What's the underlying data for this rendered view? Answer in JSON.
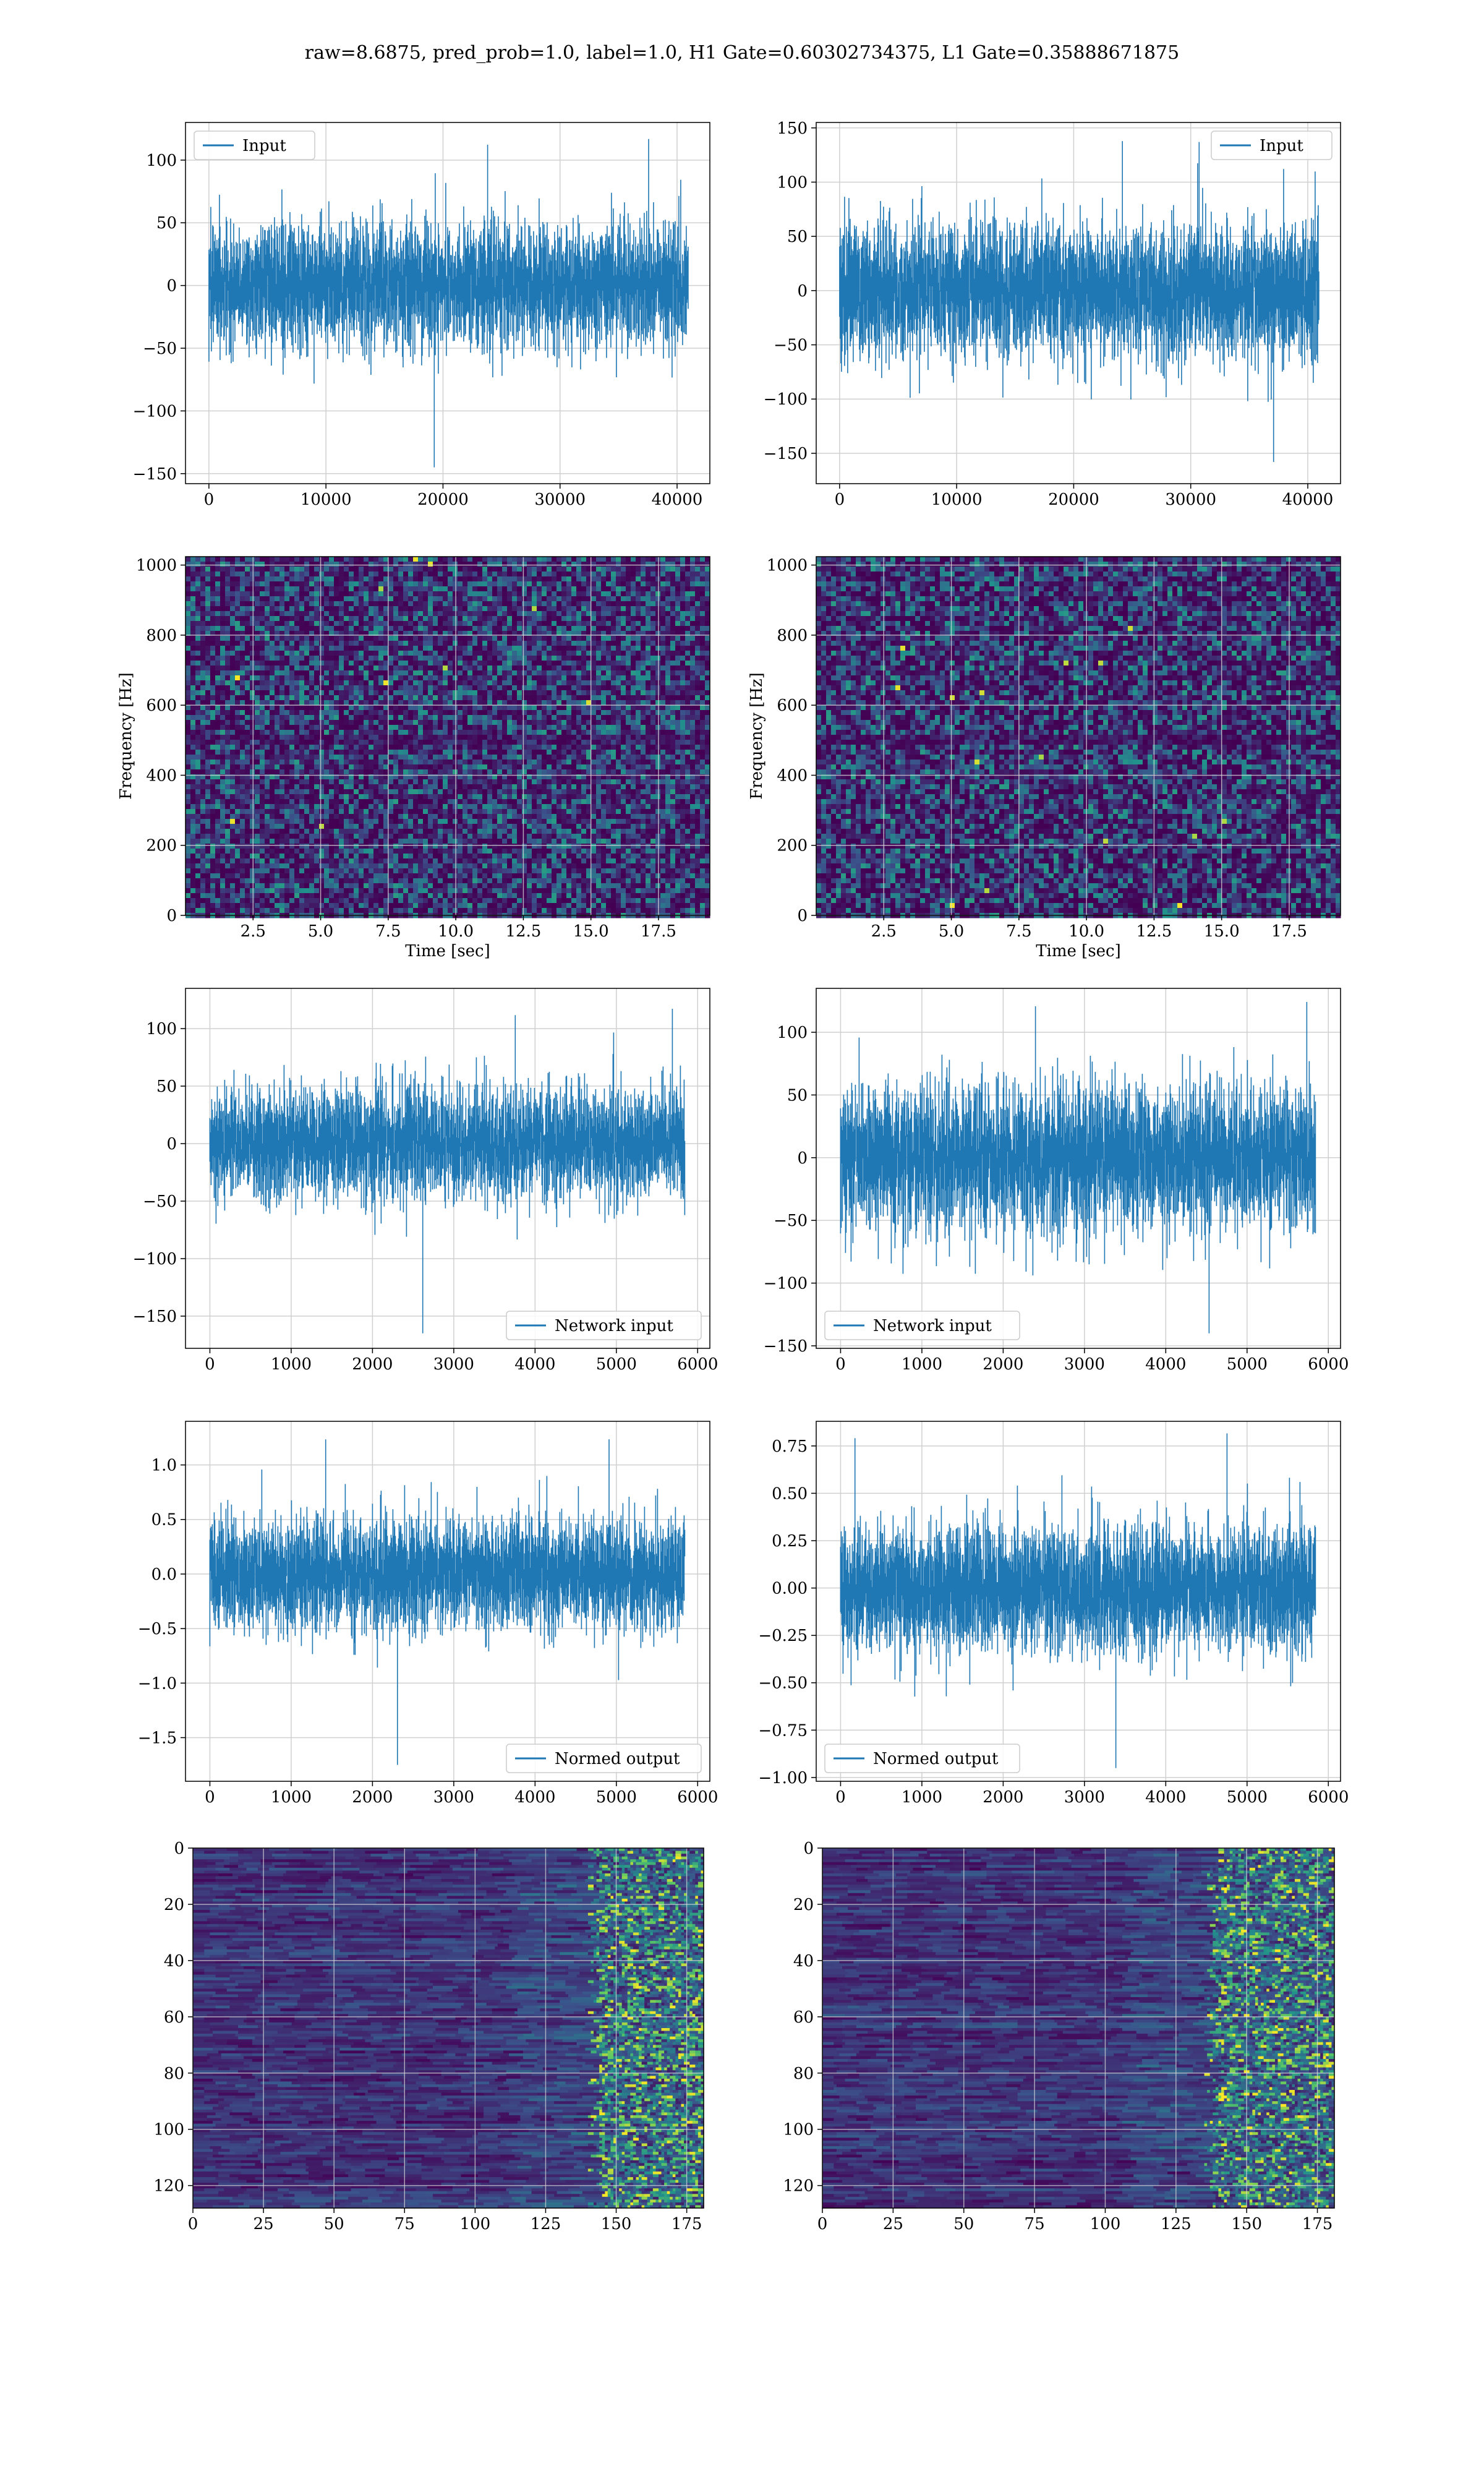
{
  "title": "raw=8.6875, pred_prob=1.0, label=1.0, H1 Gate=0.60302734375, L1 Gate=0.35888671875",
  "colors": {
    "series": "#1f77b4",
    "grid": "#d0d0d0",
    "heatmap_low": "#440154",
    "heatmap_mid": "#31688e",
    "heatmap_mid2": "#35b779",
    "heatmap_high": "#fde725"
  },
  "chart_data": [
    {
      "id": "row1-left",
      "type": "line",
      "legend": "Input",
      "legend_loc": "upper left",
      "xlim": [
        -2000,
        42800
      ],
      "ylim": [
        -158,
        130
      ],
      "xticks": [
        0,
        10000,
        20000,
        30000,
        40000
      ],
      "yticks": [
        -150,
        -100,
        -50,
        0,
        50,
        100
      ],
      "x_range": [
        0,
        40959
      ],
      "noise_sigma": 24,
      "envelope_max": 118,
      "envelope_min": -145,
      "xlabel": "",
      "ylabel": "",
      "grid": true
    },
    {
      "id": "row1-right",
      "type": "line",
      "legend": "Input",
      "legend_loc": "upper right",
      "xlim": [
        -2000,
        42800
      ],
      "ylim": [
        -178,
        155
      ],
      "xticks": [
        0,
        10000,
        20000,
        30000,
        40000
      ],
      "yticks": [
        -150,
        -100,
        -50,
        0,
        50,
        100,
        150
      ],
      "x_range": [
        0,
        40959
      ],
      "noise_sigma": 30,
      "envelope_max": 143,
      "envelope_min": -158,
      "xlabel": "",
      "ylabel": "",
      "grid": true
    },
    {
      "id": "row2-left",
      "type": "heatmap",
      "kind": "spectrogram",
      "colormap": "viridis",
      "xlim": [
        0,
        19.4
      ],
      "ylim": [
        0,
        1024
      ],
      "xticks": [
        2.5,
        5.0,
        7.5,
        10.0,
        12.5,
        15.0,
        17.5
      ],
      "yticks": [
        0,
        200,
        400,
        600,
        800,
        1000
      ],
      "xlabel": "Time [sec]",
      "ylabel": "Frequency [Hz]",
      "grid": true,
      "dark_band_hz": 500
    },
    {
      "id": "row2-right",
      "type": "heatmap",
      "kind": "spectrogram",
      "colormap": "viridis",
      "xlim": [
        0,
        19.4
      ],
      "ylim": [
        0,
        1024
      ],
      "xticks": [
        2.5,
        5.0,
        7.5,
        10.0,
        12.5,
        15.0,
        17.5
      ],
      "yticks": [
        0,
        200,
        400,
        600,
        800,
        1000
      ],
      "xlabel": "Time [sec]",
      "ylabel": "Frequency [Hz]",
      "grid": true,
      "dark_band_hz": 500
    },
    {
      "id": "row3-left",
      "type": "line",
      "legend": "Network input",
      "legend_loc": "lower right",
      "xlim": [
        -300,
        6150
      ],
      "ylim": [
        -178,
        135
      ],
      "xticks": [
        0,
        1000,
        2000,
        3000,
        4000,
        5000,
        6000
      ],
      "yticks": [
        -150,
        -100,
        -50,
        0,
        50,
        100
      ],
      "x_range": [
        0,
        5840
      ],
      "noise_sigma": 24,
      "envelope_max": 120,
      "envelope_min": -165,
      "xlabel": "",
      "ylabel": "",
      "grid": true
    },
    {
      "id": "row3-right",
      "type": "line",
      "legend": "Network input",
      "legend_loc": "lower left",
      "xlim": [
        -300,
        6150
      ],
      "ylim": [
        -152,
        135
      ],
      "xticks": [
        0,
        1000,
        2000,
        3000,
        4000,
        5000,
        6000
      ],
      "yticks": [
        -150,
        -100,
        -50,
        0,
        50,
        100
      ],
      "x_range": [
        0,
        5840
      ],
      "noise_sigma": 28,
      "envelope_max": 125,
      "envelope_min": -140,
      "xlabel": "",
      "ylabel": "",
      "grid": true
    },
    {
      "id": "row4-left",
      "type": "line",
      "legend": "Normed output",
      "legend_loc": "lower right",
      "xlim": [
        -300,
        6150
      ],
      "ylim": [
        -1.9,
        1.4
      ],
      "xticks": [
        0,
        1000,
        2000,
        3000,
        4000,
        5000,
        6000
      ],
      "yticks": [
        -1.5,
        -1.0,
        -0.5,
        0.0,
        0.5,
        1.0
      ],
      "x_range": [
        0,
        5840
      ],
      "noise_sigma": 0.25,
      "envelope_max": 1.25,
      "envelope_min": -1.75,
      "xlabel": "",
      "ylabel": "",
      "grid": true
    },
    {
      "id": "row4-right",
      "type": "line",
      "legend": "Normed output",
      "legend_loc": "lower left",
      "xlim": [
        -300,
        6150
      ],
      "ylim": [
        -1.02,
        0.88
      ],
      "xticks": [
        0,
        1000,
        2000,
        3000,
        4000,
        5000,
        6000
      ],
      "yticks": [
        -1.0,
        -0.75,
        -0.5,
        -0.25,
        0.0,
        0.25,
        0.5,
        0.75
      ],
      "x_range": [
        0,
        5840
      ],
      "noise_sigma": 0.16,
      "envelope_max": 0.82,
      "envelope_min": -0.95,
      "xlabel": "",
      "ylabel": "",
      "grid": true
    },
    {
      "id": "row5-left",
      "type": "heatmap",
      "kind": "feature-map",
      "colormap": "viridis",
      "xlim": [
        0,
        181
      ],
      "ylim": [
        128,
        0
      ],
      "xticks": [
        0,
        25,
        50,
        75,
        100,
        125,
        150,
        175
      ],
      "yticks": [
        0,
        20,
        40,
        60,
        80,
        100,
        120
      ],
      "rows": 128,
      "cols": 181,
      "active_col_start": 140,
      "grid": true
    },
    {
      "id": "row5-right",
      "type": "heatmap",
      "kind": "feature-map",
      "colormap": "viridis",
      "xlim": [
        0,
        181
      ],
      "ylim": [
        128,
        0
      ],
      "xticks": [
        0,
        25,
        50,
        75,
        100,
        125,
        150,
        175
      ],
      "yticks": [
        0,
        20,
        40,
        60,
        80,
        100,
        120
      ],
      "rows": 128,
      "cols": 181,
      "active_col_start": 135,
      "grid": true
    }
  ]
}
